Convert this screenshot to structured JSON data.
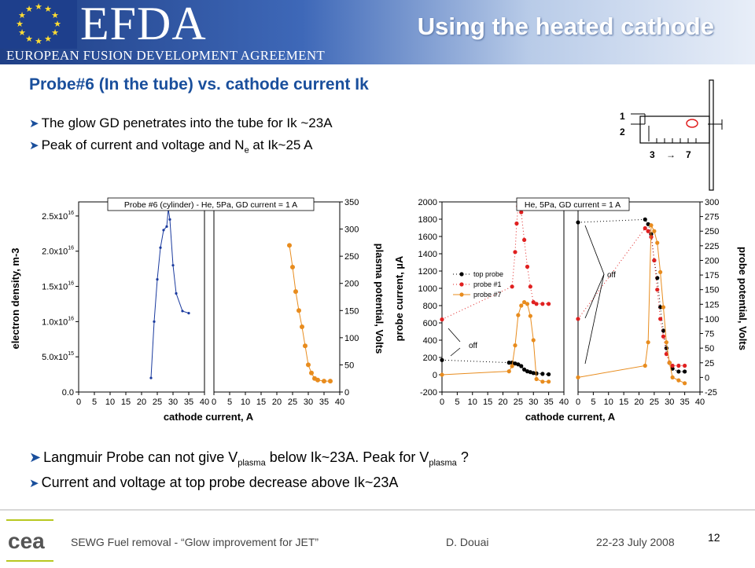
{
  "header": {
    "logo_text": "EFDA",
    "org_name": "EUROPEAN FUSION DEVELOPMENT AGREEMENT",
    "title": "Using the heated cathode"
  },
  "subtitle": "Probe#6 (In the tube) vs. cathode current Ik",
  "bullets_top": [
    {
      "text": "The glow GD penetrates into the tube for Ik ~23A"
    },
    {
      "text_before": "Peak of current and voltage and N",
      "sub": "e",
      "text_after": " at Ik~25 A"
    }
  ],
  "bullets_bottom": [
    {
      "before": "Langmuir Probe can not give V",
      "sub1": "plasma",
      "middle": " below Ik~23A. Peak for V",
      "sub2": "plasma",
      "after": " ?"
    },
    {
      "text": "Current and voltage at top probe decrease above Ik~23A"
    }
  ],
  "schematic": {
    "labels": [
      "1",
      "2",
      "3",
      "7"
    ]
  },
  "footer": {
    "left": "SEWG Fuel removal - “Glow improvement for JET”",
    "author": "D. Douai",
    "date": "22-23  July 2008",
    "page": "12"
  },
  "chart_data": [
    {
      "type": "scatter",
      "title": "Probe #6 (cylinder) -  He, 5Pa, GD current = 1 A",
      "xlabel": "cathode current, A",
      "x_ticks": [
        "0",
        "5",
        "10",
        "15",
        "20",
        "25",
        "30",
        "35",
        "40"
      ],
      "panels": [
        {
          "ylabel": "electron density, m-3",
          "y_ticks": [
            "0.0",
            "5.0x10^15",
            "1.0x10^16",
            "1.5x10^16",
            "2.0x10^16",
            "2.5x10^16"
          ],
          "ylim": [
            0,
            2.7e+16
          ],
          "series": [
            {
              "color": "#1a3a9e",
              "x": [
                23,
                24,
                25,
                26,
                27,
                28,
                28.5,
                29,
                30,
                31,
                33,
                35
              ],
              "y": [
                2000000000000000.0,
                1e+16,
                1.6e+16,
                2.05e+16,
                2.3e+16,
                2.35e+16,
                2.6e+16,
                2.45e+16,
                1.8e+16,
                1.4e+16,
                1.15e+16,
                1.12e+16
              ]
            }
          ]
        },
        {
          "ylabel": "plasma potential, Volts",
          "y_ticks": [
            "0",
            "50",
            "100",
            "150",
            "200",
            "250",
            "300",
            "350"
          ],
          "ylim": [
            0,
            350
          ],
          "series": [
            {
              "color": "#e88c1e",
              "x": [
                24,
                25,
                26,
                27,
                28,
                29,
                30,
                31,
                32,
                33,
                35,
                37
              ],
              "y": [
                270,
                230,
                185,
                150,
                120,
                85,
                50,
                35,
                25,
                22,
                20,
                20
              ]
            }
          ]
        }
      ]
    },
    {
      "type": "scatter",
      "title": "He, 5Pa, GD current = 1 A",
      "xlabel": "cathode current, A",
      "x_ticks": [
        "0",
        "5",
        "10",
        "15",
        "20",
        "25",
        "30",
        "35",
        "40"
      ],
      "legend": [
        "top probe",
        "probe #1",
        "probe #7"
      ],
      "annotations": [
        "off",
        "off"
      ],
      "panels": [
        {
          "ylabel": "probe current, µA",
          "y_ticks": [
            "-200",
            "0",
            "200",
            "400",
            "600",
            "800",
            "1000",
            "1200",
            "1400",
            "1600",
            "1800",
            "2000"
          ],
          "ylim": [
            -200,
            2000
          ],
          "series": [
            {
              "name": "top probe",
              "color": "#000000",
              "x": [
                0,
                22,
                23,
                24,
                25,
                26,
                27,
                28,
                29,
                30,
                31,
                33,
                35
              ],
              "y": [
                170,
                140,
                140,
                130,
                120,
                100,
                60,
                40,
                30,
                20,
                15,
                10,
                5
              ]
            },
            {
              "name": "probe #1",
              "color": "#e02020",
              "x": [
                0,
                23,
                24,
                24.5,
                25,
                25.5,
                26,
                27,
                28,
                29,
                30,
                31,
                33,
                35
              ],
              "y": [
                640,
                1020,
                1420,
                1750,
                1950,
                2000,
                1880,
                1560,
                1250,
                1020,
                840,
                820,
                820,
                820
              ]
            },
            {
              "name": "probe #7",
              "color": "#e88c1e",
              "x": [
                0,
                22,
                23,
                24,
                25,
                26,
                27,
                28,
                29,
                30,
                31,
                33,
                35
              ],
              "y": [
                0,
                40,
                100,
                340,
                690,
                800,
                840,
                820,
                680,
                400,
                -50,
                -80,
                -80
              ]
            }
          ]
        },
        {
          "ylabel": "probe potential, Volts",
          "y_ticks": [
            "-25",
            "0",
            "25",
            "50",
            "75",
            "100",
            "125",
            "150",
            "175",
            "200",
            "225",
            "250",
            "275",
            "300"
          ],
          "ylim": [
            -25,
            300
          ],
          "series": [
            {
              "name": "top probe",
              "color": "#000000",
              "x": [
                0,
                22,
                23,
                24,
                25,
                26,
                27,
                28,
                29,
                30,
                31,
                33,
                35
              ],
              "y": [
                265,
                270,
                262,
                245,
                200,
                170,
                120,
                80,
                50,
                25,
                15,
                10,
                10
              ]
            },
            {
              "name": "probe #1",
              "color": "#e02020",
              "x": [
                0,
                22,
                23,
                24,
                25,
                26,
                27,
                28,
                29,
                30,
                31,
                33,
                35
              ],
              "y": [
                100,
                255,
                250,
                240,
                200,
                150,
                100,
                70,
                40,
                25,
                20,
                20,
                20
              ]
            },
            {
              "name": "probe #7",
              "color": "#e88c1e",
              "x": [
                0,
                22,
                23,
                24,
                25,
                26,
                27,
                28,
                29,
                30,
                31,
                33,
                35
              ],
              "y": [
                0,
                20,
                60,
                260,
                250,
                230,
                180,
                120,
                60,
                25,
                0,
                -5,
                -10
              ]
            }
          ]
        }
      ]
    }
  ]
}
